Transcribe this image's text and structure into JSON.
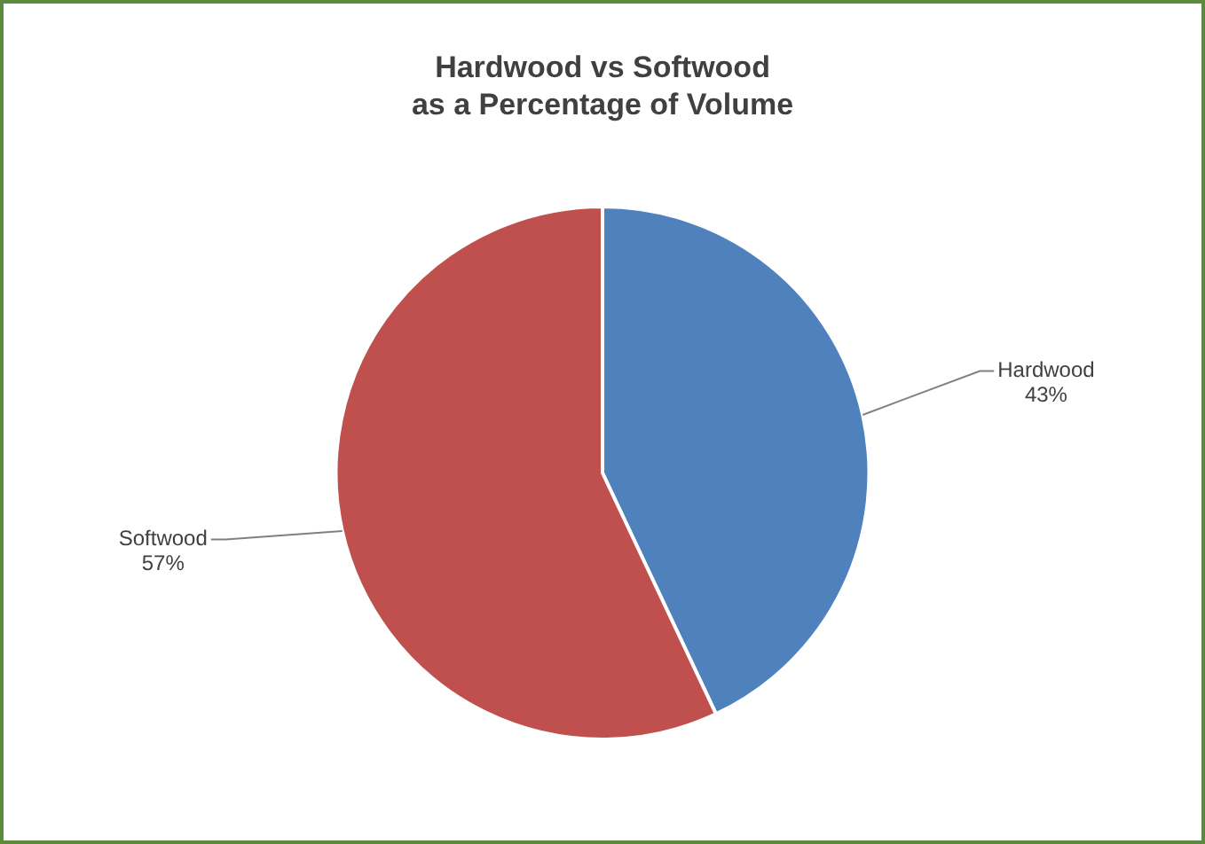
{
  "chart_data": {
    "type": "pie",
    "title": "Hardwood vs Softwood\nas a Percentage of Volume",
    "categories": [
      "Hardwood",
      "Softwood"
    ],
    "values": [
      43,
      57
    ],
    "colors": [
      "#4f81bd",
      "#c0504d"
    ],
    "value_labels": [
      "43%",
      "57%"
    ],
    "legend": false
  }
}
